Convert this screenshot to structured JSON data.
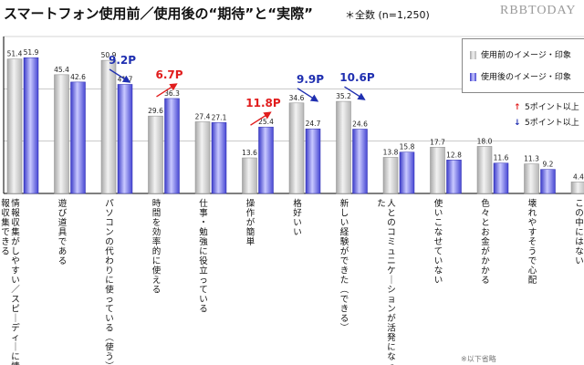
{
  "title": "スマートフォン使用前／使用後の“期待”と“実際”",
  "sample_note": "＊全数 (n=1,250)",
  "brand": "RBBTODAY",
  "footnote": "※以下省略",
  "legend": {
    "before": "使用前のイメージ・印象",
    "after": "使用後のイメージ・印象",
    "up": "5ポイント以上",
    "down": "5ポイント以上"
  },
  "colors": {
    "before": "#c4c4c4",
    "after": "#5a5ade",
    "up_arrow": "#e11d1d",
    "down_arrow": "#1f2fb0"
  },
  "chart_data": {
    "type": "bar",
    "title": "スマートフォン使用前／使用後の“期待”と“実際”",
    "categories": [
      "情報収集がしやすい／スピーディーに情報収集できる",
      "遊び道具である",
      "パソコンの代わりに使っている（使う）",
      "時間を効率的に使える",
      "仕事・勉強に役立っている",
      "操作が簡単",
      "格好いい",
      "新しい経験ができた（できる）",
      "人とのコミュニケーションが活発になった",
      "使いこなせていない",
      "色々とお金がかかる",
      "壊れやすそうで心配",
      "この中にはない"
    ],
    "series": [
      {
        "name": "使用前のイメージ・印象",
        "values": [
          51.4,
          45.4,
          50.9,
          29.6,
          27.4,
          13.6,
          34.6,
          35.2,
          13.8,
          17.7,
          18.0,
          11.3,
          4.4
        ]
      },
      {
        "name": "使用後のイメージ・印象",
        "values": [
          51.9,
          42.6,
          41.7,
          36.3,
          27.1,
          25.4,
          24.7,
          24.6,
          15.8,
          12.8,
          11.6,
          9.2,
          null
        ]
      }
    ],
    "annotations": [
      {
        "category_index": 2,
        "label": "9.2P",
        "direction": "down"
      },
      {
        "category_index": 3,
        "label": "6.7P",
        "direction": "up"
      },
      {
        "category_index": 5,
        "label": "11.8P",
        "direction": "up"
      },
      {
        "category_index": 6,
        "label": "9.9P",
        "direction": "down"
      },
      {
        "category_index": 7,
        "label": "10.6P",
        "direction": "down"
      }
    ],
    "ylim": [
      0,
      60
    ],
    "grid": true
  }
}
